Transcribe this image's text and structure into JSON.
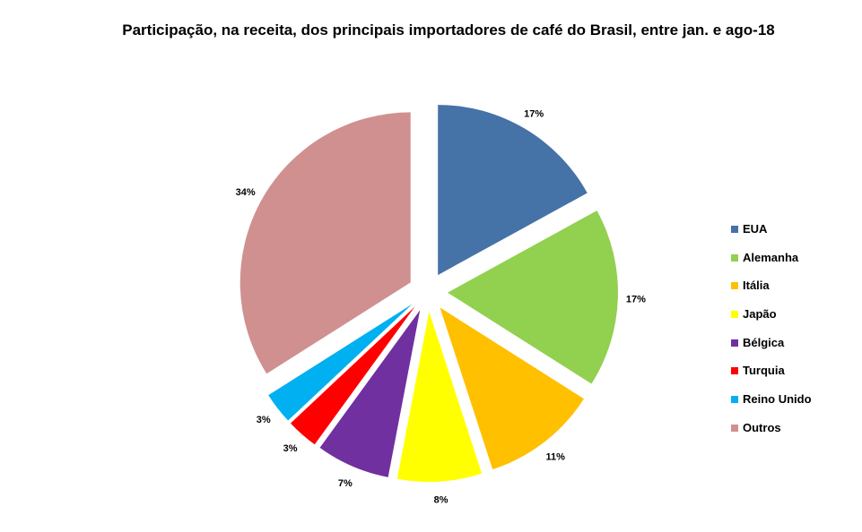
{
  "chart_data": {
    "type": "pie",
    "title": "Participação, na receita, dos principais importadores de café do Brasil, entre jan. e ago-18",
    "categories": [
      "EUA",
      "Alemanha",
      "Itália",
      "Japão",
      "Bélgica",
      "Turquia",
      "Reino Unido",
      "Outros"
    ],
    "values": [
      17,
      17,
      11,
      8,
      7,
      3,
      3,
      34
    ],
    "labels": [
      "17%",
      "17%",
      "11%",
      "8%",
      "7%",
      "3%",
      "3%",
      "34%"
    ],
    "colors": [
      "#4572A7",
      "#92D050",
      "#FFC000",
      "#FFFF00",
      "#7030A0",
      "#FF0000",
      "#00B0F0",
      "#D09090"
    ],
    "exploded": true,
    "legend_position": "right"
  }
}
